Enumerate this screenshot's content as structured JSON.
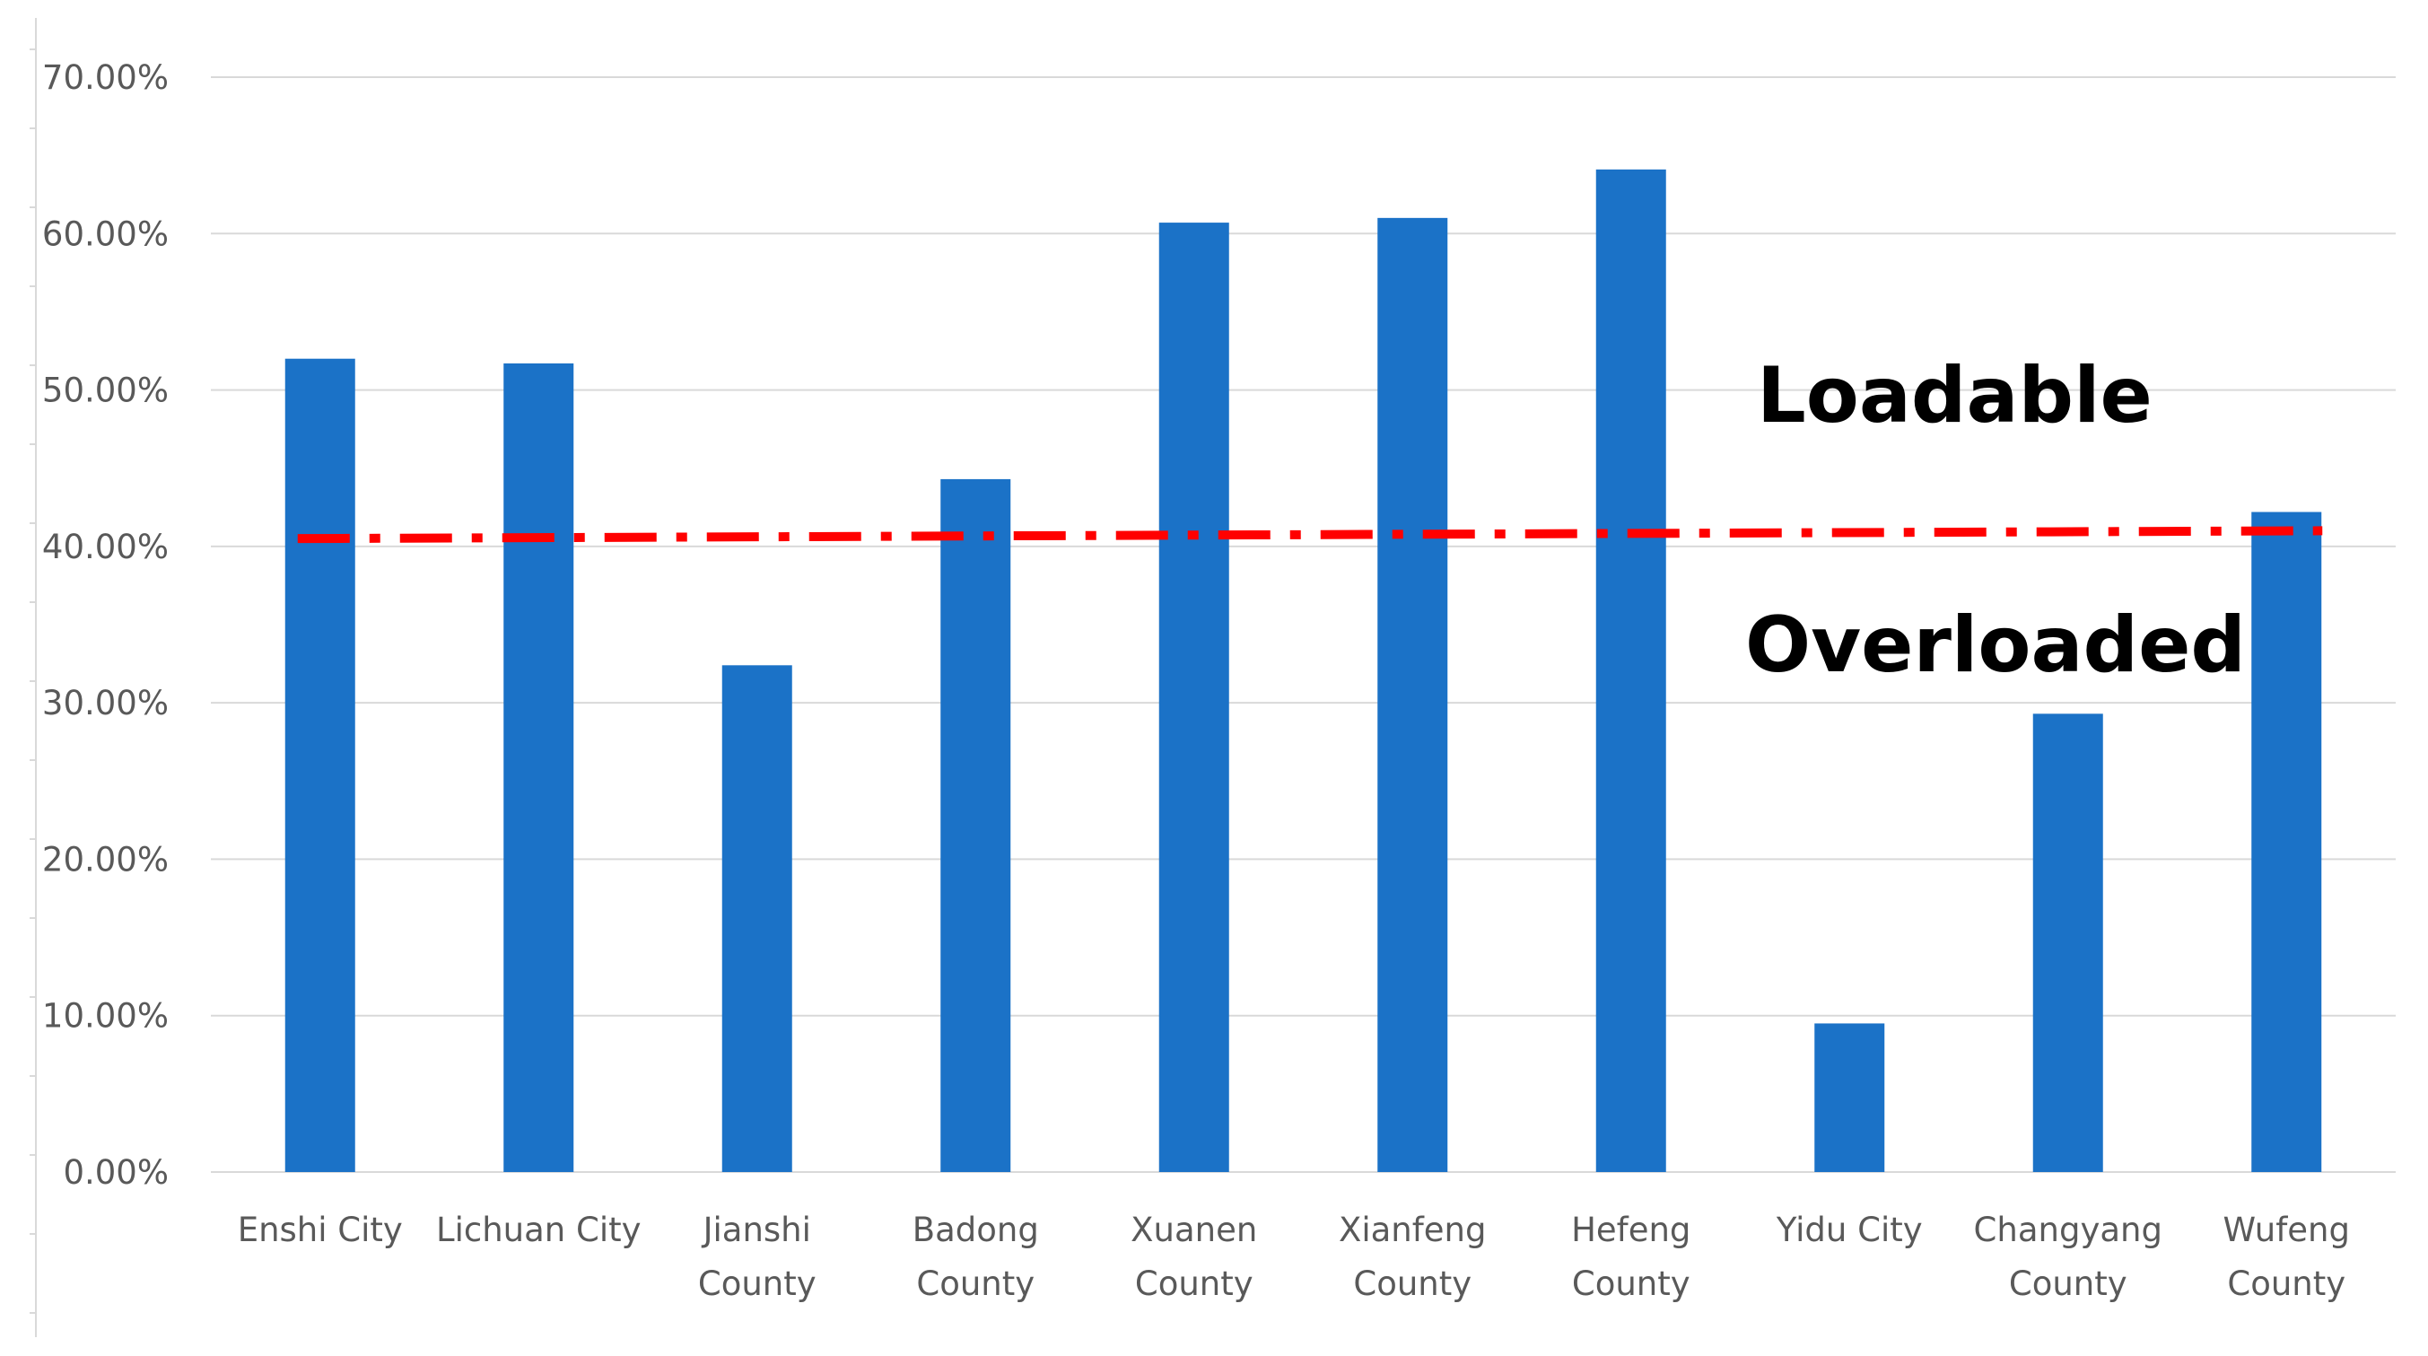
{
  "chart_data": {
    "type": "bar",
    "categories": [
      [
        "Enshi City"
      ],
      [
        "Lichuan City"
      ],
      [
        "Jianshi",
        "County"
      ],
      [
        "Badong",
        "County"
      ],
      [
        "Xuanen",
        "County"
      ],
      [
        "Xianfeng",
        "County"
      ],
      [
        "Hefeng",
        "County"
      ],
      [
        "Yidu City"
      ],
      [
        "Changyang",
        "County"
      ],
      [
        "Wufeng",
        "County"
      ]
    ],
    "values": [
      52.0,
      51.7,
      32.4,
      44.3,
      60.7,
      61.0,
      64.1,
      9.5,
      29.3,
      42.2
    ],
    "ylim": [
      0,
      70
    ],
    "yticks": [
      0,
      10,
      20,
      30,
      40,
      50,
      60,
      70
    ],
    "ytick_labels": [
      "0.00%",
      "10.00%",
      "20.00%",
      "30.00%",
      "40.00%",
      "50.00%",
      "60.00%",
      "70.00%"
    ],
    "threshold": {
      "start": 40.5,
      "end": 41.0
    },
    "annotations": {
      "upper": "Loadable",
      "lower": "Overloaded"
    },
    "grid": true,
    "title": "",
    "xlabel": "",
    "ylabel": "",
    "colors": {
      "bar": "#1B72C7",
      "threshold": "#FF0000",
      "grid": "#D9D9D9",
      "axis_text": "#595959"
    }
  }
}
